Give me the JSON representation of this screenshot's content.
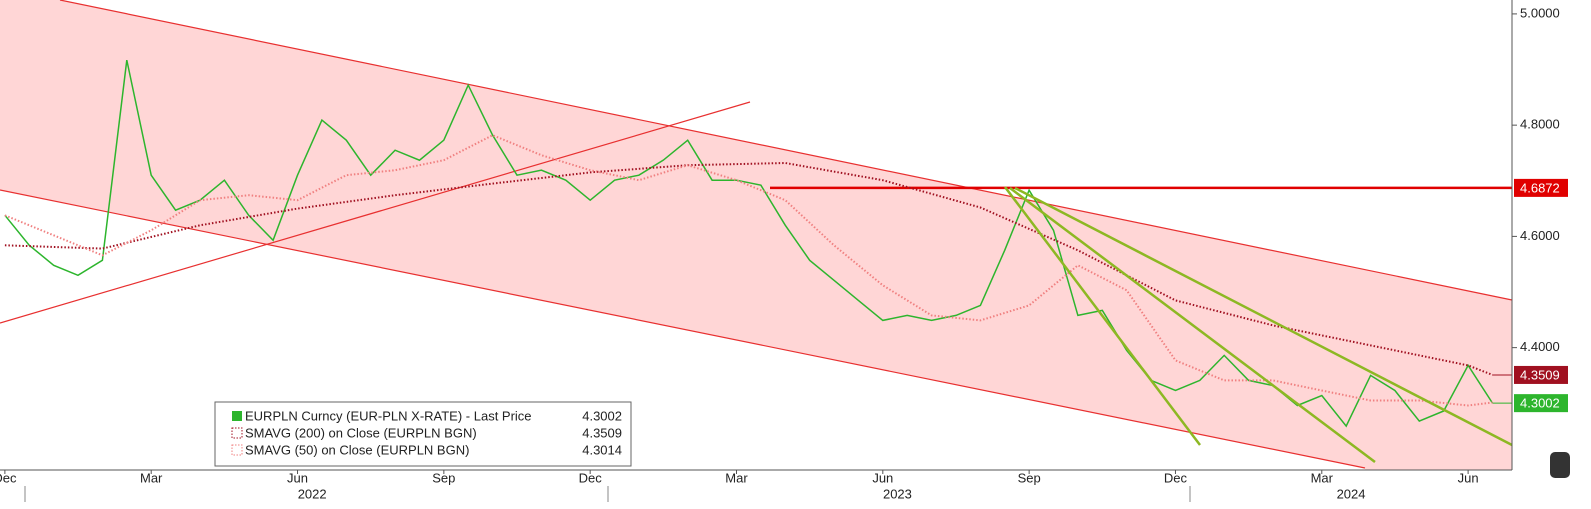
{
  "chart_data": {
    "type": "line",
    "xlim": [
      -0.1,
      30.9
    ],
    "ylim": [
      4.18,
      5.025
    ],
    "xticks": [
      {
        "value": 0,
        "label": "Dec"
      },
      {
        "value": 3,
        "label": "Mar"
      },
      {
        "value": 6,
        "label": "Jun"
      },
      {
        "value": 9,
        "label": "Sep"
      },
      {
        "value": 12,
        "label": "Dec"
      },
      {
        "value": 15,
        "label": "Mar"
      },
      {
        "value": 18,
        "label": "Jun"
      },
      {
        "value": 21,
        "label": "Sep"
      },
      {
        "value": 24,
        "label": "Dec"
      },
      {
        "value": 27,
        "label": "Mar"
      },
      {
        "value": 30,
        "label": "Jun"
      }
    ],
    "year_ticks": [
      6.3,
      18.3,
      27.6
    ],
    "year_labels": [
      "2022",
      "2023",
      "2024"
    ],
    "yticks": [
      {
        "value": 5.0,
        "label": "5.0000"
      },
      {
        "value": 4.8,
        "label": "4.8000"
      },
      {
        "value": 4.6,
        "label": "4.6000"
      },
      {
        "value": 4.4,
        "label": "4.4000"
      }
    ],
    "hlines": [
      {
        "value": 4.6872,
        "color": "#e00000"
      }
    ],
    "series": [
      {
        "name": "EURPLN Curncy (EUR-PLN X-RATE) - Last Price",
        "color": "#2db52d",
        "style": "solid",
        "tag": true,
        "x": [
          0,
          0.5,
          1,
          1.5,
          2,
          2.5,
          3,
          3.5,
          4,
          4.5,
          5,
          5.5,
          6,
          6.5,
          7,
          7.5,
          8,
          8.5,
          9,
          9.5,
          10,
          10.5,
          11,
          11.5,
          12,
          12.5,
          13,
          13.5,
          14,
          14.5,
          15,
          15.5,
          16,
          16.5,
          17,
          17.5,
          18,
          18.5,
          19,
          19.5,
          20,
          20.5,
          21,
          21.5,
          22,
          22.5,
          23,
          23.5,
          24,
          24.5,
          25,
          25.5,
          26,
          26.5,
          27,
          27.5,
          28,
          28.5,
          29,
          29.5,
          30,
          30.5
        ],
        "values": [
          4.638,
          4.584,
          4.548,
          4.53,
          4.557,
          4.917,
          4.71,
          4.647,
          4.665,
          4.701,
          4.638,
          4.593,
          4.71,
          4.809,
          4.773,
          4.71,
          4.755,
          4.737,
          4.773,
          4.872,
          4.782,
          4.71,
          4.719,
          4.701,
          4.665,
          4.701,
          4.71,
          4.737,
          4.773,
          4.701,
          4.701,
          4.692,
          4.62,
          4.557,
          4.521,
          4.485,
          4.449,
          4.458,
          4.449,
          4.458,
          4.476,
          4.575,
          4.683,
          4.611,
          4.458,
          4.467,
          4.395,
          4.341,
          4.323,
          4.341,
          4.386,
          4.341,
          4.332,
          4.296,
          4.314,
          4.259,
          4.35,
          4.323,
          4.268,
          4.286,
          4.368,
          4.3002
        ]
      },
      {
        "name": "SMAVG (200)  on Close (EURPLN BGN)",
        "color": "#a01020",
        "style": "dotted",
        "tag": true,
        "x": [
          0,
          2,
          4,
          6,
          8,
          10,
          12,
          14,
          16,
          18,
          20,
          22,
          24,
          26,
          28,
          30,
          30.5
        ],
        "values": [
          4.584,
          4.578,
          4.62,
          4.65,
          4.674,
          4.695,
          4.715,
          4.728,
          4.732,
          4.701,
          4.652,
          4.575,
          4.485,
          4.44,
          4.404,
          4.368,
          4.3509
        ]
      },
      {
        "name": "SMAVG (50)  on Close (EURPLN BGN)",
        "color": "#f08080",
        "style": "dotted",
        "tag": false,
        "x": [
          0,
          2,
          3,
          4,
          5,
          6,
          7,
          8,
          9,
          10,
          11,
          12,
          13,
          14,
          15,
          16,
          17,
          18,
          19,
          20,
          21,
          22,
          23,
          24,
          25,
          26,
          27,
          28,
          29,
          30,
          30.5
        ],
        "values": [
          4.638,
          4.566,
          4.611,
          4.665,
          4.674,
          4.665,
          4.71,
          4.719,
          4.737,
          4.782,
          4.746,
          4.719,
          4.701,
          4.728,
          4.701,
          4.665,
          4.584,
          4.512,
          4.458,
          4.449,
          4.476,
          4.548,
          4.503,
          4.377,
          4.341,
          4.341,
          4.323,
          4.305,
          4.305,
          4.296,
          4.3014
        ]
      }
    ]
  }
}
